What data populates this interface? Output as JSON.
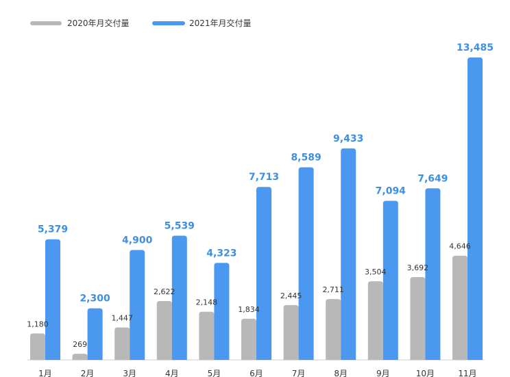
{
  "chart_data": {
    "type": "bar",
    "categories": [
      "1月",
      "2月",
      "3月",
      "4月",
      "5月",
      "6月",
      "7月",
      "8月",
      "9月",
      "10月",
      "11月"
    ],
    "series": [
      {
        "name": "2020年月交付量",
        "color": "#b8b8b8",
        "values": [
          1180,
          269,
          1447,
          2622,
          2148,
          1834,
          2445,
          2711,
          3504,
          3692,
          4646
        ],
        "labels": [
          "1,180",
          "269",
          "1,447",
          "2,622",
          "2,148",
          "1,834",
          "2,445",
          "2,711",
          "3,504",
          "3,692",
          "4,646"
        ]
      },
      {
        "name": "2021年月交付量",
        "color": "#4a98f0",
        "label_color": "#3d8fe0",
        "values": [
          5379,
          2300,
          4900,
          5539,
          4323,
          7713,
          8589,
          9433,
          7094,
          7649,
          13485
        ],
        "labels": [
          "5,379",
          "2,300",
          "4,900",
          "5,539",
          "4,323",
          "7,713",
          "8,589",
          "9,433",
          "7,094",
          "7,649",
          "13,485"
        ]
      }
    ],
    "title": "",
    "xlabel": "",
    "ylabel": "",
    "ylim": [
      0,
      13485
    ],
    "grid": false,
    "legend_position": "top-left",
    "axis_color": "#cccccc"
  }
}
